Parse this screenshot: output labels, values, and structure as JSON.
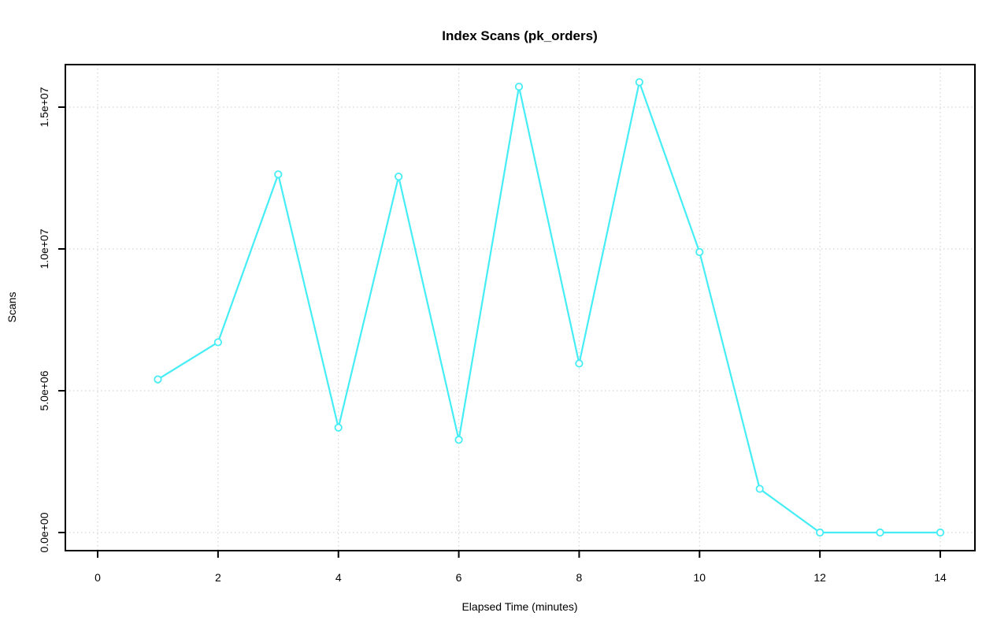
{
  "chart_data": {
    "type": "line",
    "title": "Index Scans (pk_orders)",
    "xlabel": "Elapsed Time (minutes)",
    "ylabel": "Scans",
    "x": [
      1,
      2,
      3,
      4,
      5,
      6,
      7,
      8,
      9,
      10,
      11,
      12,
      13,
      14
    ],
    "y": [
      5400000,
      6710000,
      12630000,
      3700000,
      12550000,
      3270000,
      15720000,
      5960000,
      15880000,
      9890000,
      1540000,
      0,
      0,
      0
    ],
    "x_ticks": [
      0,
      2,
      4,
      6,
      8,
      10,
      12,
      14
    ],
    "y_ticks": {
      "labels": [
        "0.0e+00",
        "5.0e+06",
        "1.0e+07",
        "1.5e+07"
      ],
      "values": [
        0,
        5000000,
        10000000,
        15000000
      ]
    },
    "xlim": [
      0,
      14
    ],
    "ylim": [
      0,
      16500000
    ],
    "grid": "dotted",
    "legend": "none",
    "marker": "open-circle",
    "colors": {
      "line": "#45EDF5",
      "marker_fill": "#ffffff",
      "grid": "#d4d4d4",
      "axis": "#000000",
      "background": "#ffffff"
    }
  }
}
